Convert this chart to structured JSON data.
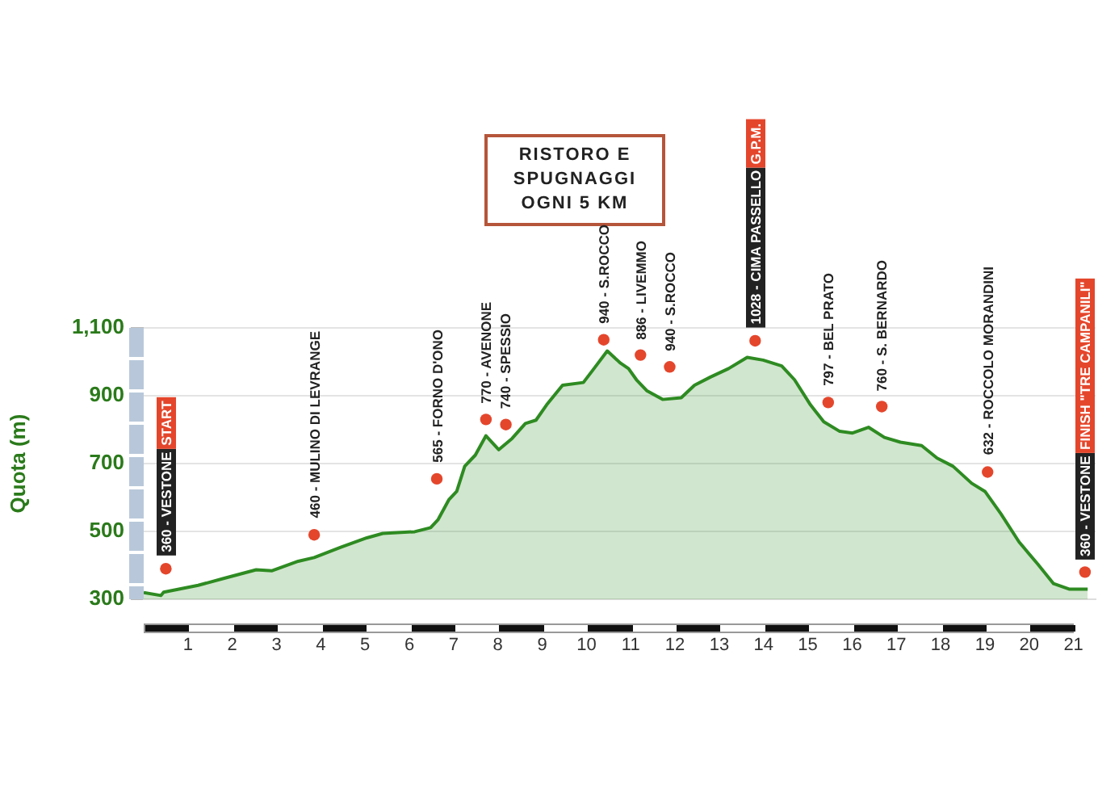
{
  "chart_data": {
    "type": "area",
    "ylabel": "Quota (m)",
    "color": "#2e8b22",
    "x": [
      0,
      0.39,
      0.45,
      1.23,
      1.82,
      2.54,
      2.9,
      3.49,
      3.85,
      4.45,
      5.04,
      5.4,
      6.12,
      6.48,
      6.65,
      6.89,
      7.07,
      7.25,
      7.49,
      7.73,
      8.02,
      8.32,
      8.62,
      8.86,
      9.1,
      9.46,
      9.93,
      10.17,
      10.47,
      10.77,
      10.95,
      11.13,
      11.37,
      11.72,
      12.14,
      12.44,
      12.8,
      13.21,
      13.63,
      13.99,
      14.41,
      14.7,
      15.06,
      15.36,
      15.72,
      16.01,
      16.37,
      16.73,
      17.09,
      17.57,
      17.92,
      18.28,
      18.7,
      19.0,
      19.36,
      19.77,
      20.19,
      20.55,
      20.9,
      21.32
    ],
    "values": [
      320,
      311,
      321,
      341,
      362,
      387,
      384,
      412,
      423,
      453,
      481,
      494,
      499,
      511,
      535,
      593,
      618,
      692,
      725,
      782,
      741,
      774,
      818,
      828,
      873,
      931,
      939,
      980,
      1032,
      996,
      980,
      947,
      914,
      889,
      894,
      931,
      955,
      980,
      1013,
      1005,
      988,
      947,
      873,
      823,
      795,
      790,
      807,
      777,
      763,
      753,
      716,
      692,
      642,
      618,
      552,
      469,
      404,
      346,
      330,
      330
    ],
    "xlim": [
      0,
      21.5
    ],
    "xticks": [
      1,
      2,
      3,
      4,
      5,
      6,
      7,
      8,
      9,
      10,
      11,
      12,
      13,
      14,
      15,
      16,
      17,
      18,
      19,
      20,
      21
    ],
    "ylim": [
      300,
      1100
    ],
    "yticks": [
      300,
      500,
      700,
      900,
      {
        "value": 1100,
        "label": "1,100"
      }
    ],
    "grid": "y",
    "annotations": [
      "RISTORO E SPUGNAGGI OGNI 5 KM",
      {
        "text": "360 - VESTONE",
        "x": 0.5,
        "y": 390
      },
      "START",
      {
        "text": "460 - MULINO DI LEVRANGE",
        "x": 3.85,
        "y": 490
      },
      {
        "text": "565 - FORNO D'ONO",
        "x": 6.62,
        "y": 655
      },
      {
        "text": "770 - AVENONE",
        "x": 7.73,
        "y": 830
      },
      {
        "text": "740 - SPESSIO",
        "x": 8.18,
        "y": 815
      },
      {
        "text": "940 - S.ROCCO",
        "x": 10.39,
        "y": 1065
      },
      {
        "text": "886 - LIVEMMO",
        "x": 11.22,
        "y": 1020
      },
      {
        "text": "940 - S.ROCCO",
        "x": 11.88,
        "y": 985
      },
      {
        "text": "1028 - CIMA PASSELLO",
        "x": 13.81,
        "y": 1062
      },
      "G.P.M.",
      {
        "text": "797 - BEL PRATO",
        "x": 15.46,
        "y": 880
      },
      {
        "text": "760 - S. BERNARDO",
        "x": 16.67,
        "y": 868
      },
      {
        "text": "632 - ROCCOLO MORANDINI",
        "x": 19.06,
        "y": 675
      },
      {
        "text": "360 - VESTONE",
        "x": 21.26,
        "y": 380
      },
      "FINISH \"TRE CAMPANILI\""
    ]
  }
}
